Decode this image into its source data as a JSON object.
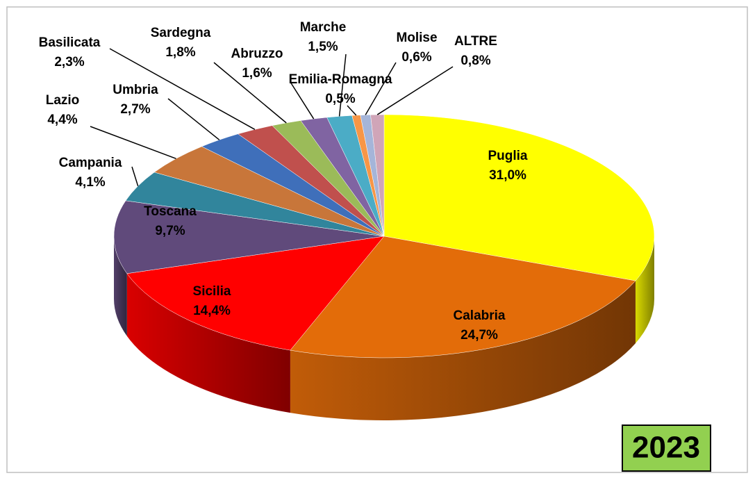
{
  "chart_data": {
    "type": "pie3d",
    "title": "2023",
    "categories": [
      "Puglia",
      "Calabria",
      "Sicilia",
      "Toscana",
      "Campania",
      "Lazio",
      "Umbria",
      "Basilicata",
      "Sardegna",
      "Abruzzo",
      "Marche",
      "Emilia-Romagna",
      "Molise",
      "ALTRE"
    ],
    "values": [
      31.0,
      24.7,
      14.4,
      9.7,
      4.1,
      4.4,
      2.7,
      2.3,
      1.8,
      1.6,
      1.5,
      0.5,
      0.6,
      0.8
    ],
    "value_labels": [
      "31,0%",
      "24,7%",
      "14,4%",
      "9,7%",
      "4,1%",
      "4,4%",
      "2,7%",
      "2,3%",
      "1,8%",
      "1,6%",
      "1,5%",
      "0,5%",
      "0,6%",
      "0,8%"
    ],
    "colors": [
      "#ffff00",
      "#e36c09",
      "#ff0000",
      "#604a7b",
      "#31859c",
      "#c8763a",
      "#3f6fba",
      "#c0504d",
      "#9bbb59",
      "#8064a2",
      "#4bacc6",
      "#f79646",
      "#a5b5d9",
      "#d0a5b8"
    ]
  }
}
